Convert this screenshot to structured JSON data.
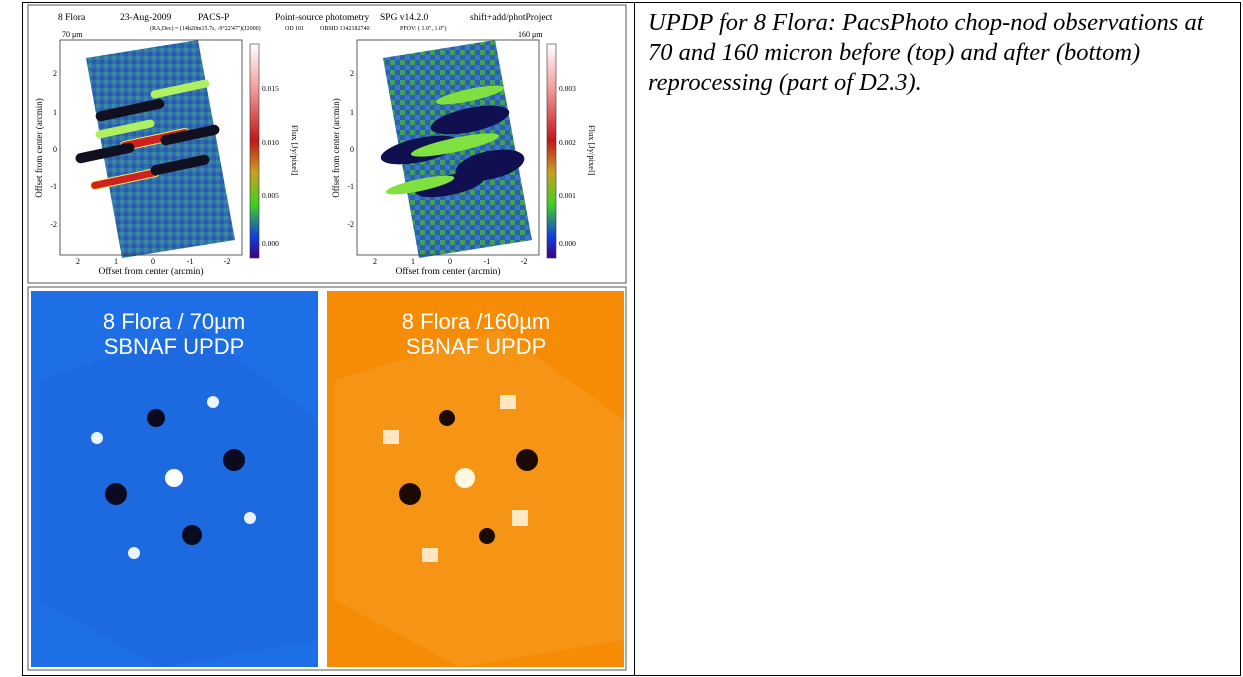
{
  "figure": {
    "top_panel": {
      "header": [
        "8 Flora",
        "23-Aug-2009",
        "PACS-P",
        "Point-source photometry",
        "SPG v14.2.0",
        "shift+add/photProject"
      ],
      "subheader": [
        "(RA,Dec) = (14h20m15.7s, -9°22'47\")(J2000)",
        "OD 101",
        "OBSID 1342182740",
        "PFOV: ( 1.0\", 1.0\")"
      ],
      "plots": [
        {
          "band": "70 μm",
          "y_label": "Offset from center (arcmin)",
          "x_label": "Offset from center (arcmin)",
          "yticks": [
            "2",
            "1",
            "0",
            "-1",
            "-2"
          ],
          "xticks": [
            "2",
            "1",
            "0",
            "-1",
            "-2"
          ],
          "colorbar_label": "Flux [Jy/pixel]",
          "colorbar_ticks": [
            "0.015",
            "0.010",
            "0.005",
            "0.000"
          ]
        },
        {
          "band": "160 μm",
          "y_label": "Offset from center (arcmin)",
          "x_label": "Offset from center (arcmin)",
          "yticks": [
            "2",
            "1",
            "0",
            "-1",
            "-2"
          ],
          "xticks": [
            "2",
            "1",
            "0",
            "-1",
            "-2"
          ],
          "colorbar_label": "Flux [Jy/pixel]",
          "colorbar_ticks": [
            "0.003",
            "0.002",
            "0.001",
            "0.000"
          ]
        }
      ]
    },
    "bottom_panel": {
      "images": [
        {
          "title": "8 Flora / 70µm",
          "subtitle": "SBNAF UPDP"
        },
        {
          "title": "8 Flora /160µm",
          "subtitle": "SBNAF UPDP"
        }
      ]
    }
  },
  "caption": "UPDP for 8 Flora: PacsPhoto chop-nod observations at 70 and 160 micron before (top) and after (bottom) reprocessing (part of D2.3)."
}
